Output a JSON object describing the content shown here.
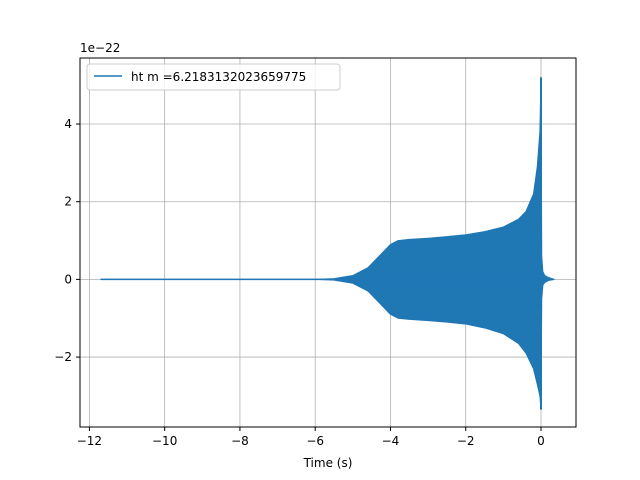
{
  "chart_data": {
    "type": "line",
    "title": "",
    "xlabel": "Time (s)",
    "ylabel": "",
    "offset_text": "1e−22",
    "xlim": [
      -12.25,
      0.93
    ],
    "ylim": [
      -3.8e-22,
      5.7e-22
    ],
    "grid": true,
    "legend_placement": "upper-left",
    "x_ticks": [
      -12,
      -10,
      -8,
      -6,
      -4,
      -2,
      0
    ],
    "x_tick_labels": [
      "−12",
      "−10",
      "−8",
      "−6",
      "−4",
      "−2",
      "0"
    ],
    "y_ticks": [
      -2e-22,
      0,
      2e-22,
      4e-22
    ],
    "y_tick_labels": [
      "−2",
      "0",
      "2",
      "4"
    ],
    "colors": {
      "series": "#1f77b4",
      "grid": "#b0b0b0"
    },
    "series": [
      {
        "name": "ht m =6.2183132023659775",
        "style": "dense-oscillation",
        "envelope": {
          "x": [
            -11.7,
            -6.0,
            -5.5,
            -5.0,
            -4.6,
            -4.3,
            -4.0,
            -3.8,
            -3.5,
            -3.0,
            -2.5,
            -2.0,
            -1.5,
            -1.0,
            -0.6,
            -0.4,
            -0.2,
            -0.1,
            -0.03,
            0.0,
            0.02,
            0.05,
            0.1,
            0.2,
            0.35
          ],
          "upper": [
            0,
            0,
            2e-24,
            1e-23,
            3e-23,
            6e-23,
            9e-23,
            1e-22,
            1.03e-22,
            1.06e-22,
            1.1e-22,
            1.15e-22,
            1.23e-22,
            1.35e-22,
            1.55e-22,
            1.75e-22,
            2.2e-22,
            2.9e-22,
            3.8e-22,
            5.2e-22,
            6e-23,
            2e-23,
            1e-23,
            5e-24,
            0
          ],
          "lower": [
            0,
            0,
            -2e-24,
            -1e-23,
            -3e-23,
            -6e-23,
            -9e-23,
            -1e-22,
            -1.03e-22,
            -1.06e-22,
            -1.1e-22,
            -1.15e-22,
            -1.25e-22,
            -1.4e-22,
            -1.65e-22,
            -1.9e-22,
            -2.3e-22,
            -2.7e-22,
            -3e-22,
            -3.35e-22,
            -5e-23,
            -1.5e-23,
            -8e-24,
            -3e-24,
            0
          ]
        }
      }
    ]
  }
}
